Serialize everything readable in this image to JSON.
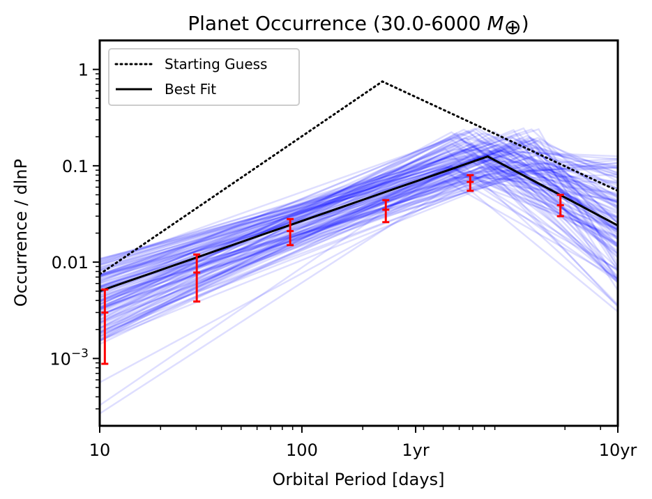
{
  "chart_data": {
    "type": "line",
    "title_prefix": "Planet Occurrence (",
    "title_range": "30.0-6000",
    "title_unit_symbol": "M",
    "title_suffix": ")",
    "title": "Planet Occurrence (30.0-6000 M⊕)",
    "xlabel": "Orbital Period [days]",
    "ylabel": "Occurrence / dlnP",
    "xscale": "log",
    "yscale": "log",
    "xlim": [
      10,
      3652.5
    ],
    "ylim": [
      0.0002,
      2
    ],
    "x_ticks": [
      {
        "value": 10,
        "label": "10"
      },
      {
        "value": 100,
        "label": "100"
      },
      {
        "value": 365.25,
        "label": "1yr"
      },
      {
        "value": 3652.5,
        "label": "10yr"
      }
    ],
    "y_ticks": [
      {
        "value": 1,
        "label": "1",
        "exp": ""
      },
      {
        "value": 0.1,
        "label": "0.1",
        "exp": ""
      },
      {
        "value": 0.01,
        "label": "0.01",
        "exp": ""
      },
      {
        "value": 0.001,
        "label": "10",
        "exp": "−3"
      }
    ],
    "legend": {
      "placement": "top-left",
      "entries": [
        {
          "label": "Starting Guess",
          "style": "dotted",
          "color": "#000000"
        },
        {
          "label": "Best Fit",
          "style": "solid",
          "color": "#000000"
        }
      ]
    },
    "series": [
      {
        "name": "Starting Guess",
        "style": "dotted",
        "color": "#000000",
        "x": [
          10,
          250,
          3652.5
        ],
        "y": [
          0.0075,
          0.75,
          0.055
        ]
      },
      {
        "name": "Best Fit",
        "style": "solid",
        "color": "#000000",
        "x": [
          10,
          830,
          3652.5
        ],
        "y": [
          0.005,
          0.125,
          0.024
        ]
      }
    ],
    "posterior_samples": {
      "name": "Posterior samples",
      "color": "#0000ff",
      "opacity": 0.13,
      "count": 120,
      "break_period_range": [
        500,
        1500
      ],
      "peak_range": [
        0.07,
        0.25
      ],
      "low_end_range": [
        0.00015,
        0.011
      ],
      "high_end_range": [
        0.002,
        0.13
      ]
    },
    "data_points": {
      "name": "Binned occurrence",
      "color": "#ff0000",
      "x": [
        10.6,
        30.2,
        87.5,
        260,
        680,
        1900
      ],
      "y": [
        0.003,
        0.0078,
        0.021,
        0.035,
        0.068,
        0.039
      ],
      "yerr_low": [
        0.00088,
        0.0039,
        0.015,
        0.026,
        0.055,
        0.03
      ],
      "yerr_high": [
        0.0052,
        0.012,
        0.028,
        0.044,
        0.08,
        0.05
      ]
    }
  }
}
